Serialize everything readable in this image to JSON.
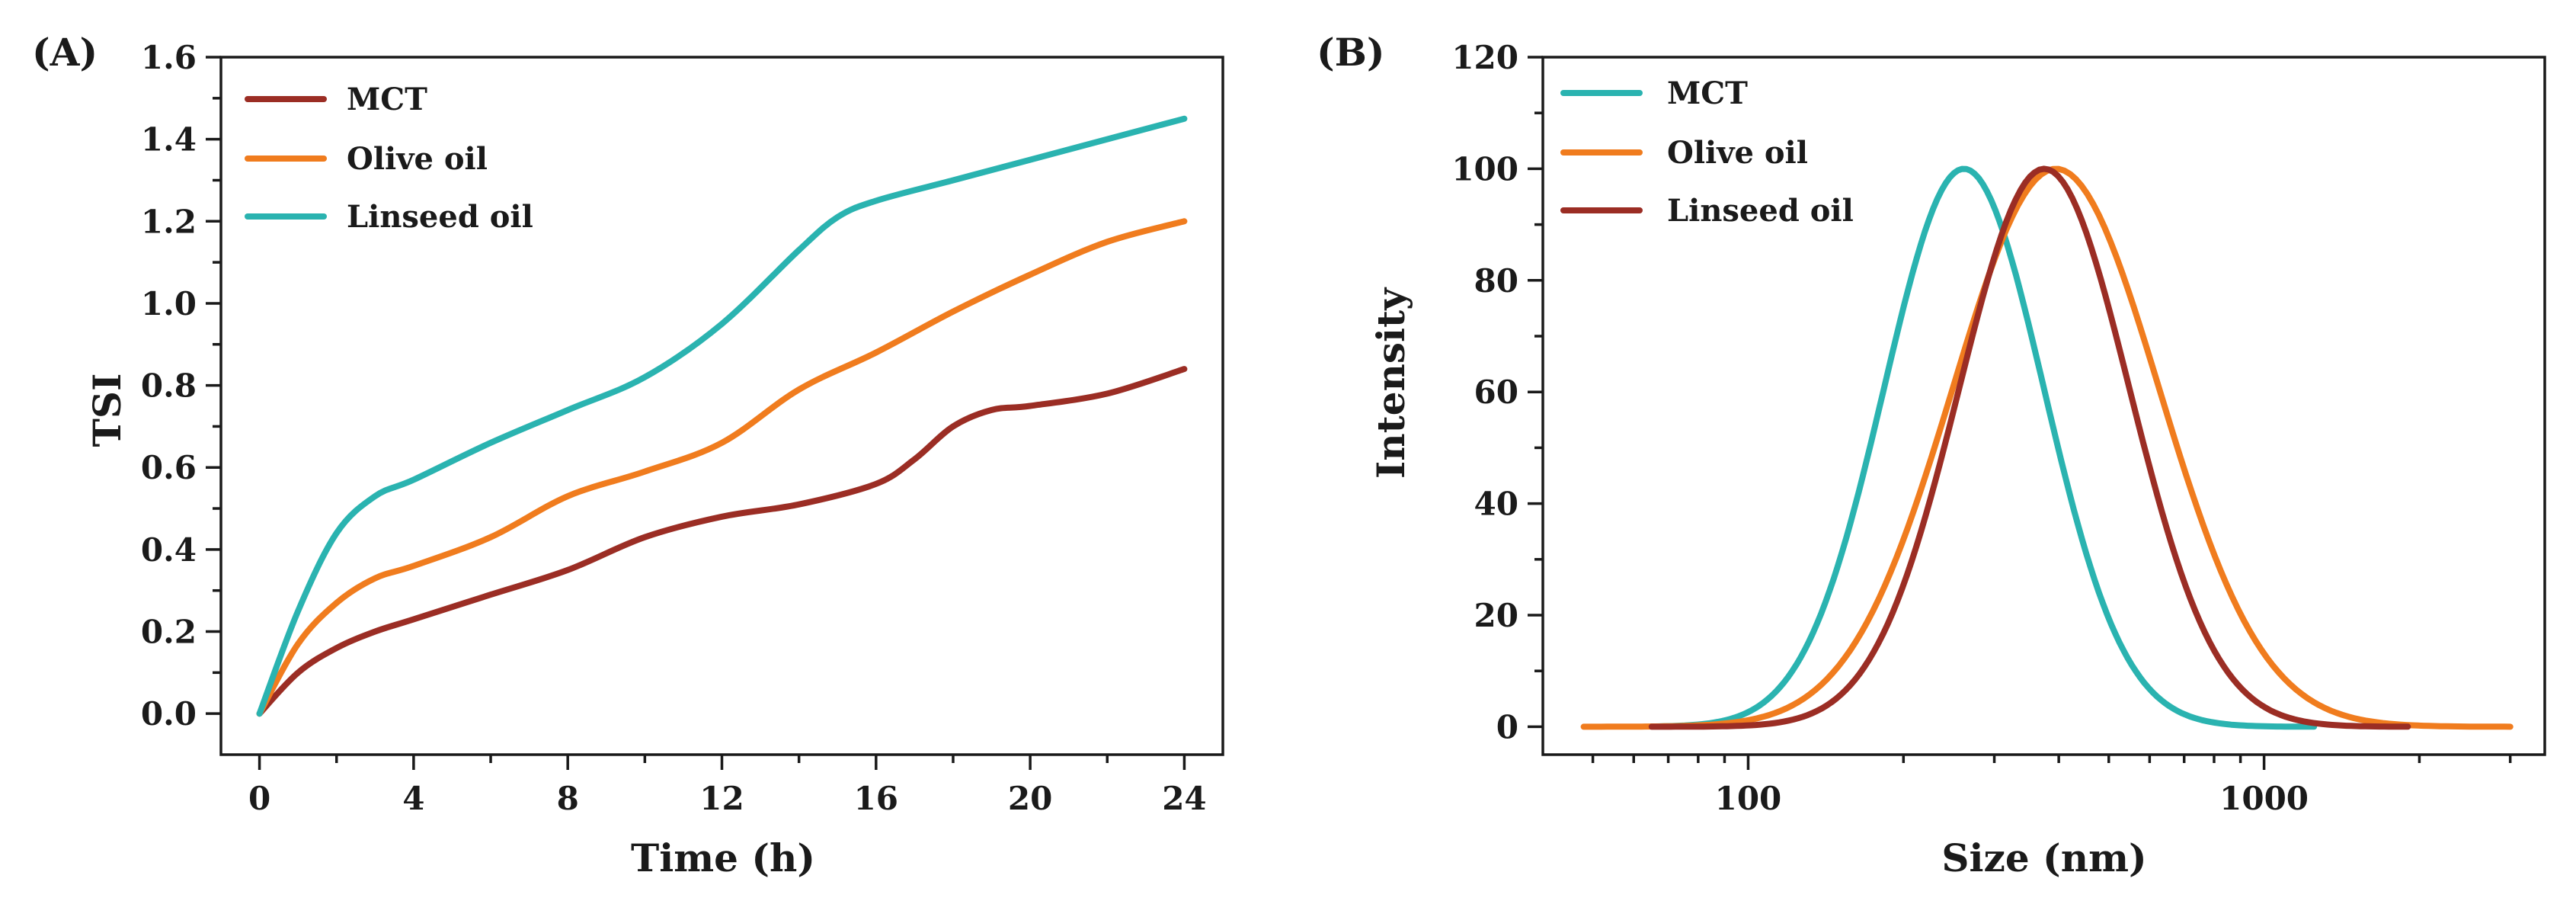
{
  "chart_data": [
    {
      "type": "line",
      "panel_label": "(A)",
      "title": "",
      "xlabel": "Time (h)",
      "ylabel": "TSI",
      "xlim": [
        -1,
        25
      ],
      "ylim": [
        -0.1,
        1.6
      ],
      "x_ticks": [
        0,
        4,
        8,
        12,
        16,
        20,
        24
      ],
      "x_tick_labels": [
        "0",
        "4",
        "8",
        "12",
        "16",
        "20",
        "24"
      ],
      "y_ticks": [
        0.0,
        0.2,
        0.4,
        0.6,
        0.8,
        1.0,
        1.2,
        1.4,
        1.6
      ],
      "y_tick_labels": [
        "0.0",
        "0.2",
        "0.4",
        "0.6",
        "0.8",
        "1.0",
        "1.2",
        "1.4",
        "1.6"
      ],
      "legend_position": "top-left",
      "series": [
        {
          "name": "MCT",
          "color": "#9b2d24",
          "x": [
            0,
            1,
            2,
            3,
            4,
            6,
            8,
            10,
            12,
            14,
            16,
            17,
            18,
            19,
            20,
            22,
            24
          ],
          "y": [
            0.0,
            0.1,
            0.16,
            0.2,
            0.23,
            0.29,
            0.35,
            0.43,
            0.48,
            0.51,
            0.56,
            0.62,
            0.7,
            0.74,
            0.75,
            0.78,
            0.84
          ]
        },
        {
          "name": "Olive oil",
          "color": "#f07c1e",
          "x": [
            0,
            1,
            2,
            3,
            4,
            6,
            8,
            10,
            12,
            14,
            16,
            18,
            20,
            22,
            24
          ],
          "y": [
            0.0,
            0.17,
            0.27,
            0.33,
            0.36,
            0.43,
            0.53,
            0.59,
            0.66,
            0.79,
            0.88,
            0.98,
            1.07,
            1.15,
            1.2
          ]
        },
        {
          "name": "Linseed oil",
          "color": "#2ab3b0",
          "x": [
            0,
            1,
            2,
            3,
            4,
            6,
            8,
            10,
            12,
            14,
            15,
            16,
            18,
            20,
            22,
            24
          ],
          "y": [
            0.0,
            0.25,
            0.44,
            0.53,
            0.57,
            0.66,
            0.74,
            0.82,
            0.95,
            1.13,
            1.21,
            1.25,
            1.3,
            1.35,
            1.4,
            1.45
          ]
        }
      ]
    },
    {
      "type": "line",
      "panel_label": "(B)",
      "title": "",
      "xlabel": "Size (nm)",
      "ylabel": "Intensity",
      "x_scale": "log",
      "xlim": [
        40,
        3500
      ],
      "ylim": [
        -5,
        120
      ],
      "x_ticks": [
        100,
        1000
      ],
      "x_tick_labels": [
        "100",
        "1000"
      ],
      "y_ticks": [
        0,
        20,
        40,
        60,
        80,
        100,
        120
      ],
      "y_tick_labels": [
        "0",
        "20",
        "40",
        "60",
        "80",
        "100",
        "120"
      ],
      "legend_position": "top-left",
      "series": [
        {
          "name": "MCT",
          "color": "#2ab3b0",
          "distribution": "log-normal",
          "peak_nm": 262,
          "log10_sigma": 0.155,
          "peak_intensity": 100,
          "x_range": [
            65,
            1250
          ]
        },
        {
          "name": "Olive oil",
          "color": "#f07c1e",
          "distribution": "log-normal",
          "peak_nm": 395,
          "log10_sigma": 0.2,
          "peak_intensity": 100,
          "x_range": [
            48,
            3000
          ]
        },
        {
          "name": "Linseed oil",
          "color": "#9b2d24",
          "distribution": "log-normal",
          "peak_nm": 375,
          "log10_sigma": 0.165,
          "peak_intensity": 100,
          "x_range": [
            65,
            1900
          ]
        }
      ]
    }
  ]
}
